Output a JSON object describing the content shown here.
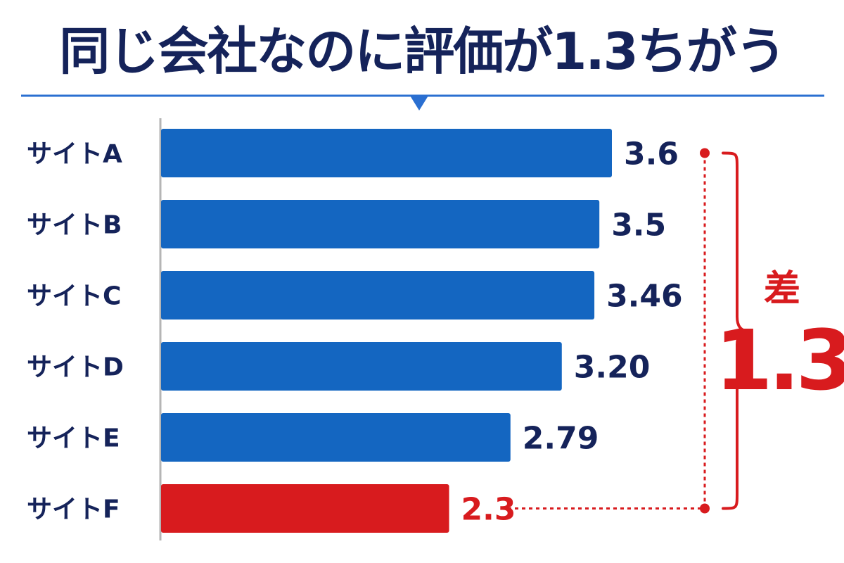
{
  "title": "同じ会社なのに評価が1.3ちがう",
  "colors": {
    "title": "#15235a",
    "bar": "#1466c1",
    "highlight": "#d81b1e",
    "rule": "#2a6fd1",
    "axis": "#b5b5b5"
  },
  "chart_data": {
    "type": "bar",
    "orientation": "horizontal",
    "categories": [
      "サイトA",
      "サイトB",
      "サイトC",
      "サイトD",
      "サイトE",
      "サイトF"
    ],
    "values": [
      3.6,
      3.5,
      3.46,
      3.2,
      2.79,
      2.3
    ],
    "value_labels": [
      "3.6",
      "3.5",
      "3.46",
      "3.20",
      "2.79",
      "2.3"
    ],
    "highlight_index": 5,
    "xlim": [
      0,
      3.6
    ],
    "grid": false,
    "annotation": {
      "label": "差",
      "value": "1.3",
      "from_index": 0,
      "to_index": 5
    }
  }
}
